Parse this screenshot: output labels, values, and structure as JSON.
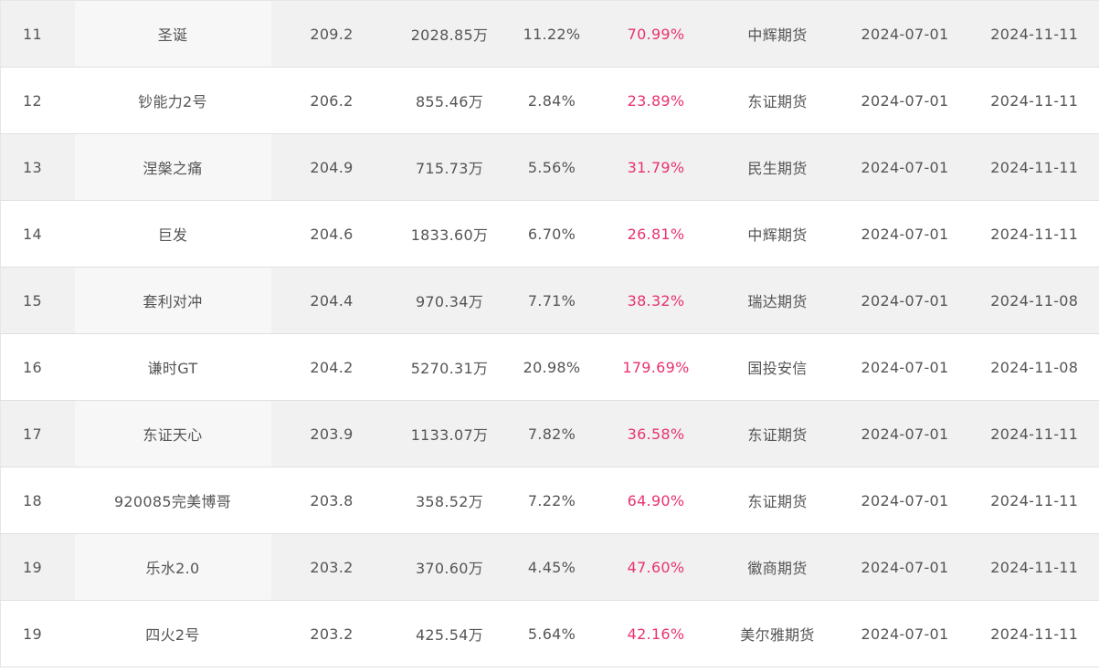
{
  "colors": {
    "row_alt_bg": "#f1f1f1",
    "row_bg": "#ffffff",
    "text": "#555555",
    "return_highlight": "#e8336d"
  },
  "rows": [
    {
      "rank": "11",
      "name": "圣诞",
      "score": "209.2",
      "equity": "2028.85万",
      "drawdown": "11.22%",
      "return": "70.99%",
      "broker": "中辉期货",
      "start_date": "2024-07-01",
      "end_date": "2024-11-11"
    },
    {
      "rank": "12",
      "name": "钞能力2号",
      "score": "206.2",
      "equity": "855.46万",
      "drawdown": "2.84%",
      "return": "23.89%",
      "broker": "东证期货",
      "start_date": "2024-07-01",
      "end_date": "2024-11-11"
    },
    {
      "rank": "13",
      "name": "涅槃之痛",
      "score": "204.9",
      "equity": "715.73万",
      "drawdown": "5.56%",
      "return": "31.79%",
      "broker": "民生期货",
      "start_date": "2024-07-01",
      "end_date": "2024-11-11"
    },
    {
      "rank": "14",
      "name": "巨发",
      "score": "204.6",
      "equity": "1833.60万",
      "drawdown": "6.70%",
      "return": "26.81%",
      "broker": "中辉期货",
      "start_date": "2024-07-01",
      "end_date": "2024-11-11"
    },
    {
      "rank": "15",
      "name": "套利对冲",
      "score": "204.4",
      "equity": "970.34万",
      "drawdown": "7.71%",
      "return": "38.32%",
      "broker": "瑞达期货",
      "start_date": "2024-07-01",
      "end_date": "2024-11-08"
    },
    {
      "rank": "16",
      "name": "谦时GT",
      "score": "204.2",
      "equity": "5270.31万",
      "drawdown": "20.98%",
      "return": "179.69%",
      "broker": "国投安信",
      "start_date": "2024-07-01",
      "end_date": "2024-11-08"
    },
    {
      "rank": "17",
      "name": "东证天心",
      "score": "203.9",
      "equity": "1133.07万",
      "drawdown": "7.82%",
      "return": "36.58%",
      "broker": "东证期货",
      "start_date": "2024-07-01",
      "end_date": "2024-11-11"
    },
    {
      "rank": "18",
      "name": "920085完美博哥",
      "score": "203.8",
      "equity": "358.52万",
      "drawdown": "7.22%",
      "return": "64.90%",
      "broker": "东证期货",
      "start_date": "2024-07-01",
      "end_date": "2024-11-11"
    },
    {
      "rank": "19",
      "name": "乐水2.0",
      "score": "203.2",
      "equity": "370.60万",
      "drawdown": "4.45%",
      "return": "47.60%",
      "broker": "徽商期货",
      "start_date": "2024-07-01",
      "end_date": "2024-11-11"
    },
    {
      "rank": "19",
      "name": "四火2号",
      "score": "203.2",
      "equity": "425.54万",
      "drawdown": "5.64%",
      "return": "42.16%",
      "broker": "美尔雅期货",
      "start_date": "2024-07-01",
      "end_date": "2024-11-11"
    }
  ]
}
